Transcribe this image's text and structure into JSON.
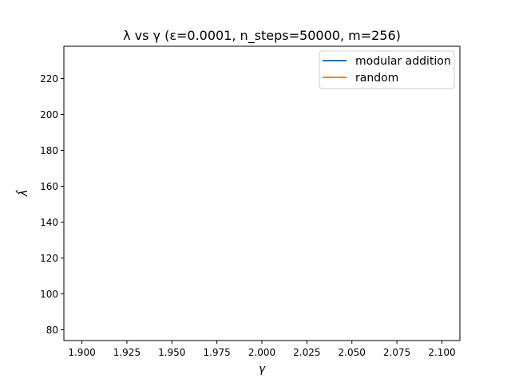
{
  "chart_data": {
    "type": "line",
    "title": "λ vs γ (ε=0.0001, n_steps=50000, m=256)",
    "xlabel": "γ",
    "ylabel": "λ̂",
    "xlim": [
      1.89,
      2.11
    ],
    "ylim": [
      74,
      238
    ],
    "xticks": [
      "1.900",
      "1.925",
      "1.950",
      "1.975",
      "2.000",
      "2.025",
      "2.050",
      "2.075",
      "2.100"
    ],
    "xtick_values": [
      1.9,
      1.925,
      1.95,
      1.975,
      2.0,
      2.025,
      2.05,
      2.075,
      2.1
    ],
    "yticks": [
      "80",
      "100",
      "120",
      "140",
      "160",
      "180",
      "200",
      "220"
    ],
    "ytick_values": [
      80,
      100,
      120,
      140,
      160,
      180,
      200,
      220
    ],
    "legend_position": "top-right",
    "grid": false,
    "series": [
      {
        "name": "modular addition",
        "color": "#1f77b4",
        "x": [],
        "y": []
      },
      {
        "name": "random",
        "color": "#ff7f0e",
        "x": [],
        "y": []
      }
    ]
  }
}
